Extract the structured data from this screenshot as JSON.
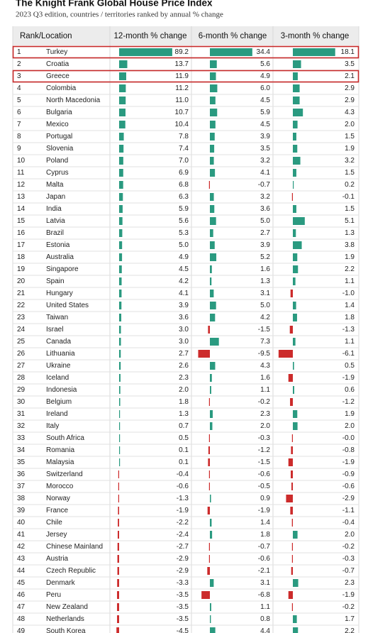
{
  "header": {
    "title": "The Knight Frank Global House Price Index",
    "subtitle": "2023 Q3 edition, countries / territories ranked by annual % change"
  },
  "table": {
    "headers": [
      "Rank/Location",
      "12-month % change",
      "6-month % change",
      "3-month % change"
    ],
    "ranks": [
      1,
      2,
      3,
      4,
      5,
      6,
      7,
      8,
      9,
      10,
      11,
      12,
      13,
      14,
      15,
      16,
      17,
      18,
      19,
      20,
      21,
      22,
      23,
      24,
      25,
      26,
      27,
      28,
      29,
      30,
      31,
      32,
      33,
      34,
      35,
      36,
      37,
      38,
      39,
      40,
      41,
      42,
      43,
      44,
      45,
      46,
      47,
      48,
      49
    ],
    "locations": [
      "Turkey",
      "Croatia",
      "Greece",
      "Colombia",
      "North Macedonia",
      "Bulgaria",
      "Mexico",
      "Portugal",
      "Slovenia",
      "Poland",
      "Cyprus",
      "Malta",
      "Japan",
      "India",
      "Latvia",
      "Brazil",
      "Estonia",
      "Australia",
      "Singapore",
      "Spain",
      "Hungary",
      "United States",
      "Taiwan",
      "Israel",
      "Canada",
      "Lithuania",
      "Ukraine",
      "Iceland",
      "Indonesia",
      "Belgium",
      "Ireland",
      "Italy",
      "South Africa",
      "Romania",
      "Malaysia",
      "Switzerland",
      "Morocco",
      "Norway",
      "France",
      "Chile",
      "Jersey",
      "Chinese Mainland",
      "Austria",
      "Czech Republic",
      "Denmark",
      "Peru",
      "New Zealand",
      "Netherlands",
      "South Korea"
    ],
    "series": [
      {
        "values": [
          89.2,
          13.7,
          11.9,
          11.2,
          11.0,
          10.7,
          10.4,
          7.8,
          7.4,
          7.0,
          6.9,
          6.8,
          6.3,
          5.9,
          5.6,
          5.3,
          5.0,
          4.9,
          4.5,
          4.2,
          4.1,
          3.9,
          3.6,
          3.0,
          3.0,
          2.7,
          2.6,
          2.3,
          2.0,
          1.8,
          1.3,
          0.7,
          0.5,
          0.1,
          0.1,
          -0.4,
          -0.6,
          -1.3,
          -1.9,
          -2.2,
          -2.4,
          -2.7,
          -2.9,
          -2.9,
          -3.3,
          -3.5,
          -3.5,
          -3.5,
          -4.5
        ],
        "value_labels": [
          "89.2",
          "13.7",
          "11.9",
          "11.2",
          "11.0",
          "10.7",
          "10.4",
          "7.8",
          "7.4",
          "7.0",
          "6.9",
          "6.8",
          "6.3",
          "5.9",
          "5.6",
          "5.3",
          "5.0",
          "4.9",
          "4.5",
          "4.2",
          "4.1",
          "3.9",
          "3.6",
          "3.0",
          "3.0",
          "2.7",
          "2.6",
          "2.3",
          "2.0",
          "1.8",
          "1.3",
          "0.7",
          "0.5",
          "0.1",
          "0.1",
          "-0.4",
          "-0.6",
          "-1.3",
          "-1.9",
          "-2.2",
          "-2.4",
          "-2.7",
          "-2.9",
          "-2.9",
          "-3.3",
          "-3.5",
          "-3.5",
          "-3.5",
          "-4.5"
        ]
      },
      {
        "values": [
          34.4,
          5.6,
          4.9,
          6.0,
          4.5,
          5.9,
          4.5,
          3.9,
          3.5,
          3.2,
          4.1,
          -0.7,
          3.2,
          3.6,
          5.0,
          2.7,
          3.9,
          5.2,
          1.6,
          1.3,
          3.1,
          5.0,
          4.2,
          -1.5,
          7.3,
          -9.5,
          4.3,
          1.6,
          1.1,
          -0.2,
          2.3,
          2.0,
          -0.3,
          -1.2,
          -1.5,
          -0.6,
          -0.5,
          0.9,
          -1.9,
          1.4,
          1.8,
          -0.7,
          -0.6,
          -2.1,
          3.1,
          -6.8,
          1.1,
          0.8,
          4.4
        ],
        "value_labels": [
          "34.4",
          "5.6",
          "4.9",
          "6.0",
          "4.5",
          "5.9",
          "4.5",
          "3.9",
          "3.5",
          "3.2",
          "4.1",
          "-0.7",
          "3.2",
          "3.6",
          "5.0",
          "2.7",
          "3.9",
          "5.2",
          "1.6",
          "1.3",
          "3.1",
          "5.0",
          "4.2",
          "-1.5",
          "7.3",
          "-9.5",
          "4.3",
          "1.6",
          "1.1",
          "-0.2",
          "2.3",
          "2.0",
          "-0.3",
          "-1.2",
          "-1.5",
          "-0.6",
          "-0.5",
          "0.9",
          "-1.9",
          "1.4",
          "1.8",
          "-0.7",
          "-0.6",
          "-2.1",
          "3.1",
          "-6.8",
          "1.1",
          "0.8",
          "4.4"
        ]
      },
      {
        "values": [
          18.1,
          3.5,
          2.1,
          2.9,
          2.9,
          4.3,
          2.0,
          1.5,
          1.9,
          3.2,
          1.5,
          0.2,
          -0.1,
          1.5,
          5.1,
          1.3,
          3.8,
          1.9,
          2.2,
          1.1,
          -1.0,
          1.4,
          1.8,
          -1.3,
          1.1,
          -6.1,
          0.5,
          -1.9,
          0.6,
          -1.2,
          1.9,
          2.0,
          -0.0,
          -0.8,
          -1.9,
          -0.9,
          -0.6,
          -2.9,
          -1.1,
          -0.4,
          2.0,
          -0.2,
          -0.3,
          -0.7,
          2.3,
          -1.9,
          -0.2,
          1.7,
          2.2
        ],
        "value_labels": [
          "18.1",
          "3.5",
          "2.1",
          "2.9",
          "2.9",
          "4.3",
          "2.0",
          "1.5",
          "1.9",
          "3.2",
          "1.5",
          "0.2",
          "-0.1",
          "1.5",
          "5.1",
          "1.3",
          "3.8",
          "1.9",
          "2.2",
          "1.1",
          "-1.0",
          "1.4",
          "1.8",
          "-1.3",
          "1.1",
          "-6.1",
          "0.5",
          "-1.9",
          "0.6",
          "-1.2",
          "1.9",
          "2.0",
          "-0.0",
          "-0.8",
          "-1.9",
          "-0.9",
          "-0.6",
          "-2.9",
          "-1.1",
          "-0.4",
          "2.0",
          "-0.2",
          "-0.3",
          "-0.7",
          "2.3",
          "-1.9",
          "-0.2",
          "1.7",
          "2.2"
        ]
      }
    ],
    "highlighted_rows": [
      0,
      2
    ],
    "positive_color": "#2a9a80",
    "negative_color": "#cc2b2b",
    "highlight_color": "#c62828"
  }
}
